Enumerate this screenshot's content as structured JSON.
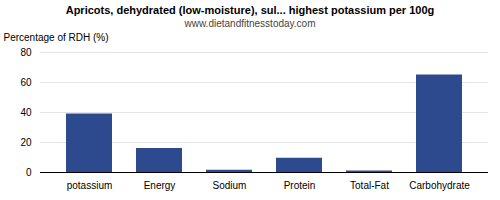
{
  "chart_data": {
    "type": "bar",
    "title": "Apricots, dehydrated (low-moisture), sul... highest potassium per 100g",
    "subtitle": "www.dietandfitnesstoday.com",
    "ylabel": "Percentage of RDH (%)",
    "categories": [
      "potassium",
      "Energy",
      "Sodium",
      "Protein",
      "Total-Fat",
      "Carbohydrate"
    ],
    "values": [
      39,
      16,
      1.5,
      9.5,
      1.0,
      65
    ],
    "color": "#2e4a8e",
    "ylim": [
      0,
      80
    ],
    "yticks": [
      0,
      20,
      40,
      60,
      80
    ],
    "grid": true
  }
}
